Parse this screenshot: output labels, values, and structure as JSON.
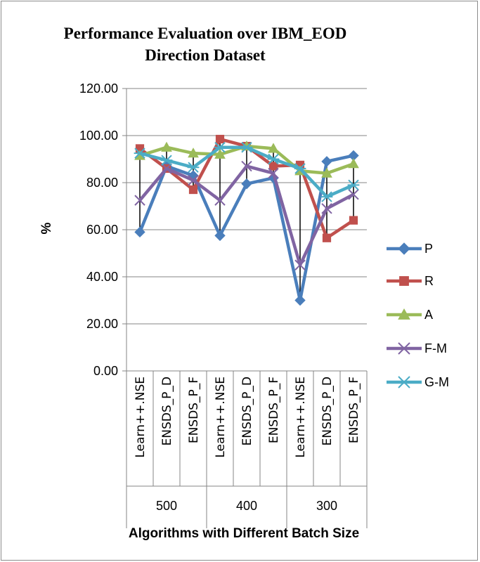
{
  "chart_data": {
    "type": "line",
    "title": [
      "Performance Evaluation over IBM_EOD",
      "Direction Dataset"
    ],
    "xlabel": "Algorithms with Different Batch Size",
    "ylabel": "%",
    "ylim": [
      0,
      120
    ],
    "yticks": [
      "0.00",
      "20.00",
      "40.00",
      "60.00",
      "80.00",
      "100.00",
      "120.00"
    ],
    "categories": [
      "Learn++.NSE",
      "ENSDS_P_D",
      "ENSDS_P_F",
      "Learn++.NSE",
      "ENSDS_P_D",
      "ENSDS_P_F",
      "Learn++.NSE",
      "ENSDS_P_D",
      "ENSDS_P_F"
    ],
    "groups": [
      "500",
      "400",
      "300"
    ],
    "grid": "horizontal",
    "legend_position": "right",
    "series": [
      {
        "name": "P",
        "color": "#4a7ebb",
        "marker": "diamond",
        "values": [
          59,
          87,
          83,
          57.5,
          79.5,
          82,
          30,
          89,
          91.5
        ]
      },
      {
        "name": "R",
        "color": "#c0504d",
        "marker": "square",
        "values": [
          94.5,
          86,
          77,
          98.5,
          95.5,
          87,
          87.5,
          56.5,
          64
        ]
      },
      {
        "name": "A",
        "color": "#9bbb59",
        "marker": "triangle",
        "values": [
          91.5,
          95,
          92.5,
          92,
          95.5,
          94.5,
          85,
          84,
          88
        ]
      },
      {
        "name": "F-M",
        "color": "#8064a2",
        "marker": "x",
        "values": [
          72.5,
          86,
          81,
          72.5,
          87,
          84,
          45,
          69,
          75
        ]
      },
      {
        "name": "G-M",
        "color": "#4bacc6",
        "marker": "asterisk",
        "values": [
          92.5,
          89.5,
          86.5,
          95,
          95,
          90,
          86,
          74,
          79
        ]
      }
    ]
  }
}
